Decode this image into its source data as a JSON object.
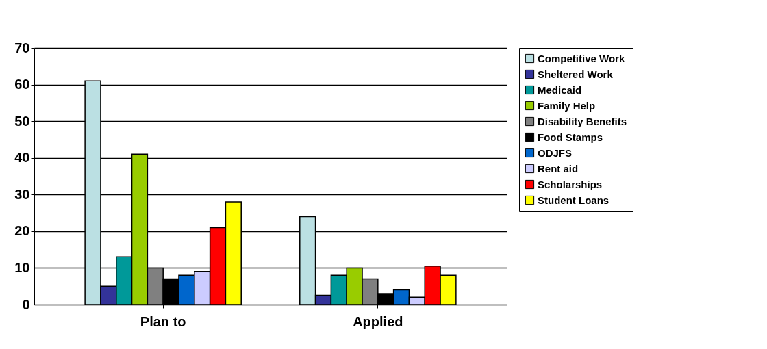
{
  "chart_data": {
    "type": "bar",
    "categories": [
      "Plan to",
      "Applied"
    ],
    "series": [
      {
        "name": "Competitive Work",
        "color": "#bbe0e3",
        "values": [
          61,
          24
        ]
      },
      {
        "name": "Sheltered Work",
        "color": "#333399",
        "values": [
          5,
          2.5
        ]
      },
      {
        "name": "Medicaid",
        "color": "#009999",
        "values": [
          13,
          8
        ]
      },
      {
        "name": "Family Help",
        "color": "#99cc00",
        "values": [
          41,
          10
        ]
      },
      {
        "name": "Disability Benefits",
        "color": "#808080",
        "values": [
          10,
          7
        ]
      },
      {
        "name": "Food Stamps",
        "color": "#000000",
        "values": [
          7,
          3
        ]
      },
      {
        "name": "ODJFS",
        "color": "#0066cc",
        "values": [
          8,
          4
        ]
      },
      {
        "name": "Rent aid",
        "color": "#ccccff",
        "values": [
          9,
          2
        ]
      },
      {
        "name": "Scholarships",
        "color": "#ff0000",
        "values": [
          21,
          10.5
        ]
      },
      {
        "name": "Student Loans",
        "color": "#ffff00",
        "values": [
          28,
          8
        ]
      }
    ],
    "ylim": [
      0,
      70
    ],
    "yticks": [
      0,
      10,
      20,
      30,
      40,
      50,
      60,
      70
    ],
    "grid": "y",
    "legend": "right"
  }
}
